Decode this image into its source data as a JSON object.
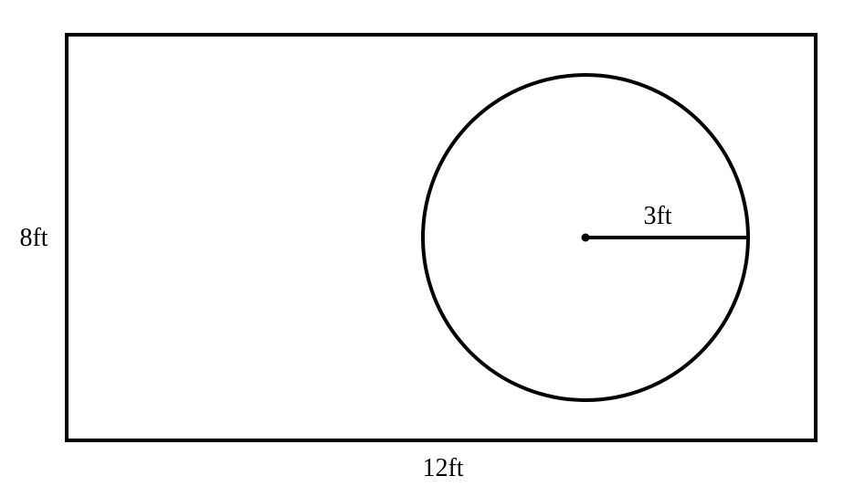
{
  "figure": {
    "rectangle": {
      "width_label": "12ft",
      "height_label": "8ft",
      "width_value": 12,
      "height_value": 8,
      "unit": "ft"
    },
    "circle": {
      "radius_label": "3ft",
      "radius_value": 3,
      "unit": "ft"
    }
  },
  "colors": {
    "stroke": "#000000",
    "background": "#ffffff"
  }
}
